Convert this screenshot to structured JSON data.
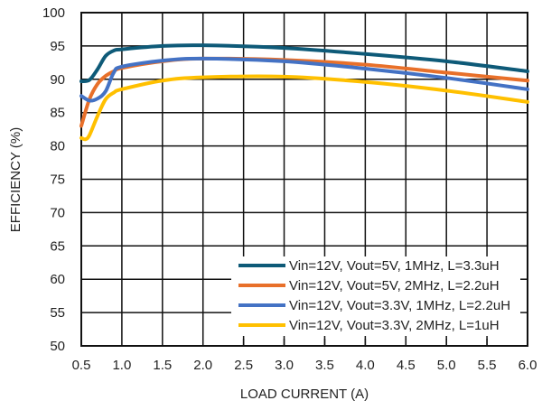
{
  "chart_data": {
    "type": "line",
    "title": "",
    "xlabel": "LOAD CURRENT (A)",
    "ylabel": "EFFICIENCY (%)",
    "xlim": [
      0.5,
      6.0
    ],
    "ylim": [
      50,
      100
    ],
    "xticks": [
      "0.5",
      "1.0",
      "1.5",
      "2.0",
      "2.5",
      "3.0",
      "3.5",
      "4.0",
      "4.5",
      "5.0",
      "5.5",
      "6.0"
    ],
    "yticks": [
      "50",
      "55",
      "60",
      "65",
      "70",
      "75",
      "80",
      "85",
      "90",
      "95",
      "100"
    ],
    "grid": true,
    "legend_position": "bottom-right",
    "series": [
      {
        "name": "Vin=12V, Vout=5V, 1MHz, L=3.3uH",
        "color": "#0e5a78",
        "x": [
          0.5,
          0.6,
          0.7,
          0.8,
          0.9,
          1.0,
          1.5,
          2.0,
          3.0,
          4.0,
          5.0,
          6.0
        ],
        "y": [
          89.7,
          89.9,
          91.5,
          93.5,
          94.3,
          94.5,
          95.0,
          95.1,
          94.7,
          93.8,
          92.7,
          91.2
        ]
      },
      {
        "name": "Vin=12V, Vout=5V, 2MHz, L=2.2uH",
        "color": "#e8702a",
        "x": [
          0.5,
          0.6,
          0.7,
          0.8,
          0.9,
          1.0,
          1.5,
          2.0,
          3.0,
          4.0,
          5.0,
          6.0
        ],
        "y": [
          83.0,
          87.0,
          89.3,
          90.5,
          91.2,
          91.7,
          92.7,
          93.1,
          92.9,
          92.2,
          91.0,
          89.8
        ]
      },
      {
        "name": "Vin=12V, Vout=3.3V, 1MHz, L=2.2uH",
        "color": "#4472c4",
        "x": [
          0.5,
          0.6,
          0.7,
          0.8,
          0.9,
          1.0,
          1.5,
          2.0,
          3.0,
          4.0,
          5.0,
          6.0
        ],
        "y": [
          87.5,
          86.8,
          87.1,
          88.2,
          91.0,
          91.9,
          92.8,
          93.1,
          92.7,
          91.6,
          90.2,
          88.5
        ]
      },
      {
        "name": "Vin=12V, Vout=3.3V, 2MHz, L=1uH",
        "color": "#ffc000",
        "x": [
          0.5,
          0.55,
          0.6,
          0.7,
          0.8,
          0.9,
          1.0,
          1.5,
          2.0,
          3.0,
          4.0,
          5.0,
          6.0
        ],
        "y": [
          81.2,
          81.0,
          81.6,
          84.5,
          87.0,
          88.0,
          88.5,
          89.8,
          90.3,
          90.4,
          89.6,
          88.3,
          86.6
        ]
      }
    ]
  }
}
